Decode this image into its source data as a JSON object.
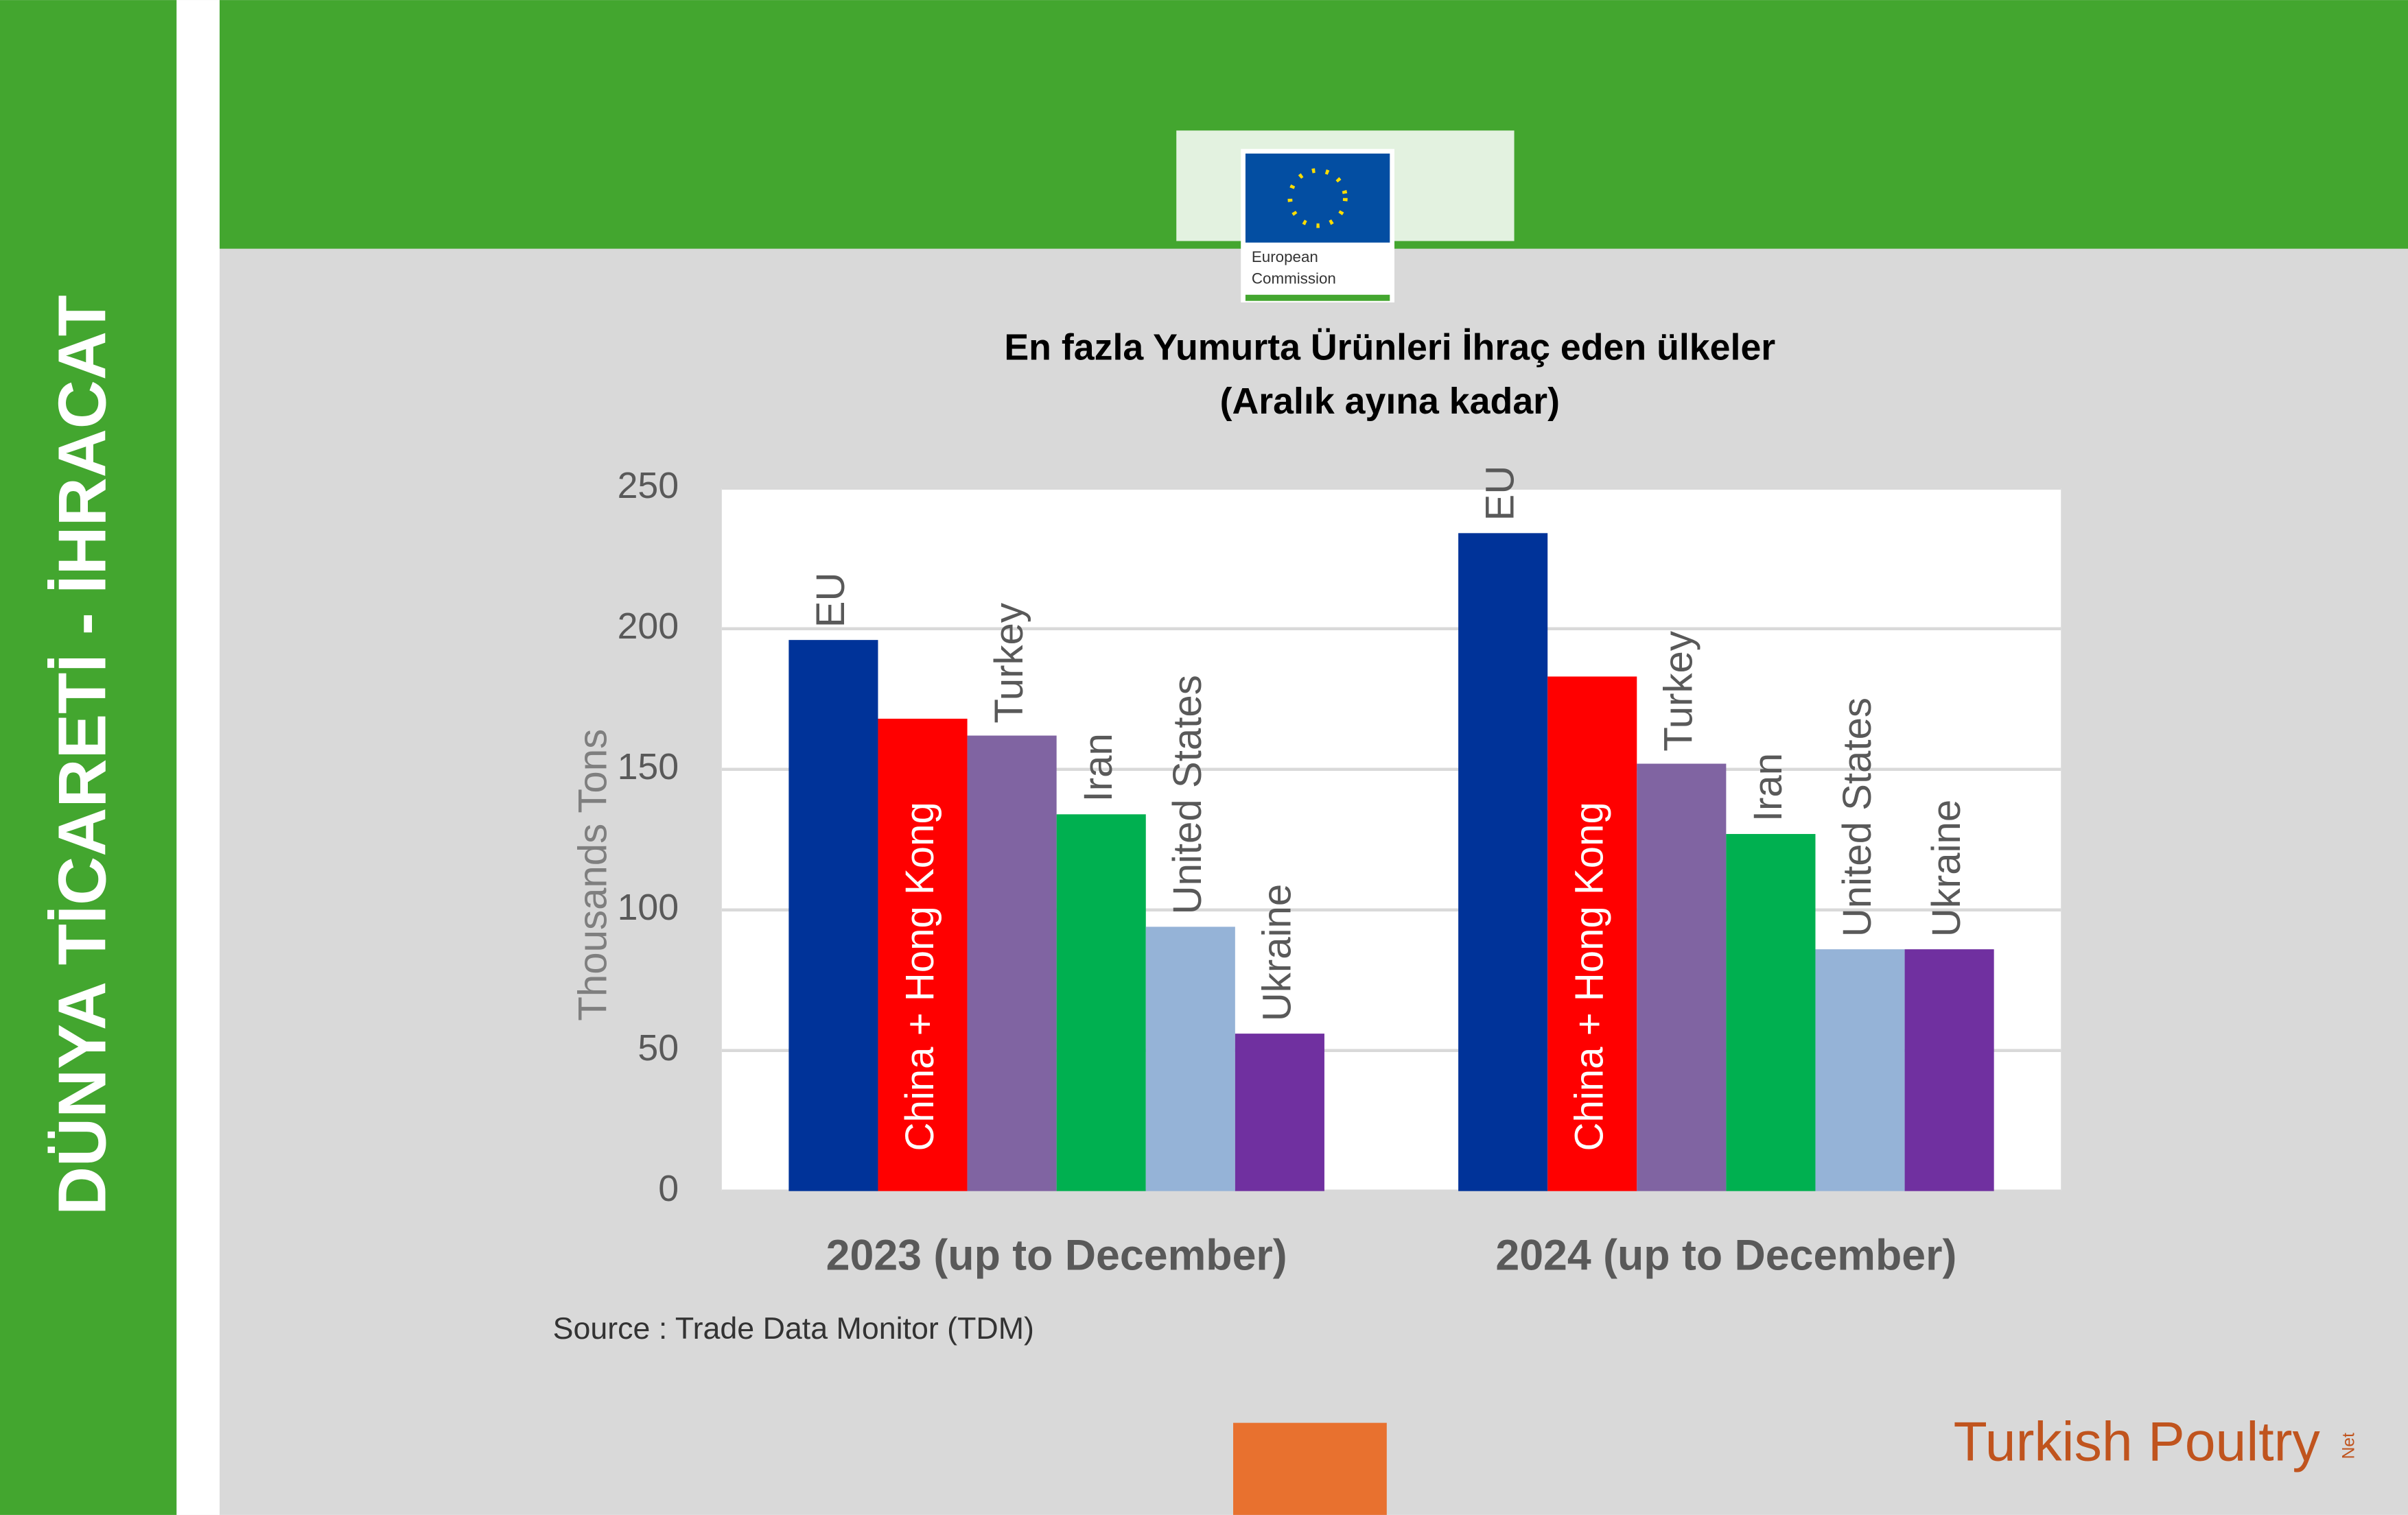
{
  "banner_text": "DÜNYA TİCARETİ - İHRACAT",
  "logos": {
    "ec_line1": "European",
    "ec_line2": "Commission",
    "brand": "Turkish Poultry",
    "brand_suffix": "Net"
  },
  "source": "Source : Trade Data Monitor (TDM)",
  "chart_data": {
    "type": "bar",
    "title": "En fazla Yumurta Ürünleri İhraç eden ülkeler",
    "subtitle": "(Aralık ayına kadar)",
    "y_label": "Thousands Tons",
    "categories": [
      "2023 (up to December)",
      "2024 (up to December)"
    ],
    "series": [
      {
        "name": "EU",
        "color": "#003399",
        "values": [
          196,
          234
        ]
      },
      {
        "name": "China + Hong Kong",
        "color": "#ff0000",
        "values": [
          168,
          183
        ]
      },
      {
        "name": "Turkey",
        "color": "#8064a2",
        "values": [
          162,
          152
        ]
      },
      {
        "name": "Iran",
        "color": "#00b050",
        "values": [
          134,
          127
        ]
      },
      {
        "name": "United States",
        "color": "#95b3d7",
        "values": [
          94,
          86
        ]
      },
      {
        "name": "Ukraine",
        "color": "#7030a0",
        "values": [
          56,
          86
        ]
      }
    ],
    "ylim": [
      0,
      250
    ],
    "yticks": [
      0,
      50,
      100,
      150,
      200,
      250
    ],
    "grid": true
  }
}
